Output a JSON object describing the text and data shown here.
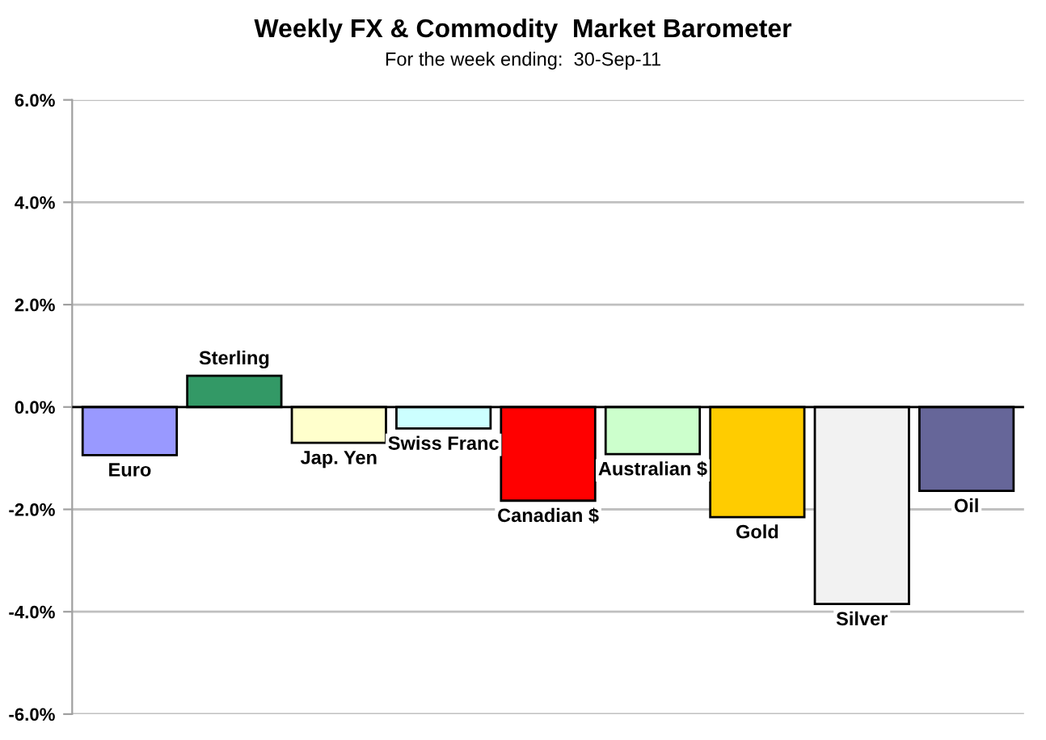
{
  "chart_data": {
    "type": "bar",
    "title": "Weekly FX & Commodity  Market Barometer",
    "subtitle": "For the week ending:  30-Sep-11",
    "categories": [
      "Euro",
      "Sterling",
      "Jap. Yen",
      "Swiss Franc",
      "Canadian $",
      "Australian $",
      "Gold",
      "Silver",
      "Oil"
    ],
    "values": [
      -0.94,
      0.61,
      -0.7,
      -0.42,
      -1.83,
      -0.92,
      -2.15,
      -3.85,
      -1.64
    ],
    "colors": [
      "#9999ff",
      "#339966",
      "#ffffcc",
      "#ccffff",
      "#ff0000",
      "#ccffcc",
      "#ffcc00",
      "#f2f2f2",
      "#666699"
    ],
    "ylim": [
      -6,
      6
    ],
    "yticks": [
      {
        "value": -6,
        "label": "-6.0%"
      },
      {
        "value": -4,
        "label": "-4.0%"
      },
      {
        "value": -2,
        "label": "-2.0%"
      },
      {
        "value": 0,
        "label": "0.0%"
      },
      {
        "value": 2,
        "label": "2.0%"
      },
      {
        "value": 4,
        "label": "4.0%"
      },
      {
        "value": 6,
        "label": "6.0%"
      }
    ],
    "grid": "y"
  }
}
